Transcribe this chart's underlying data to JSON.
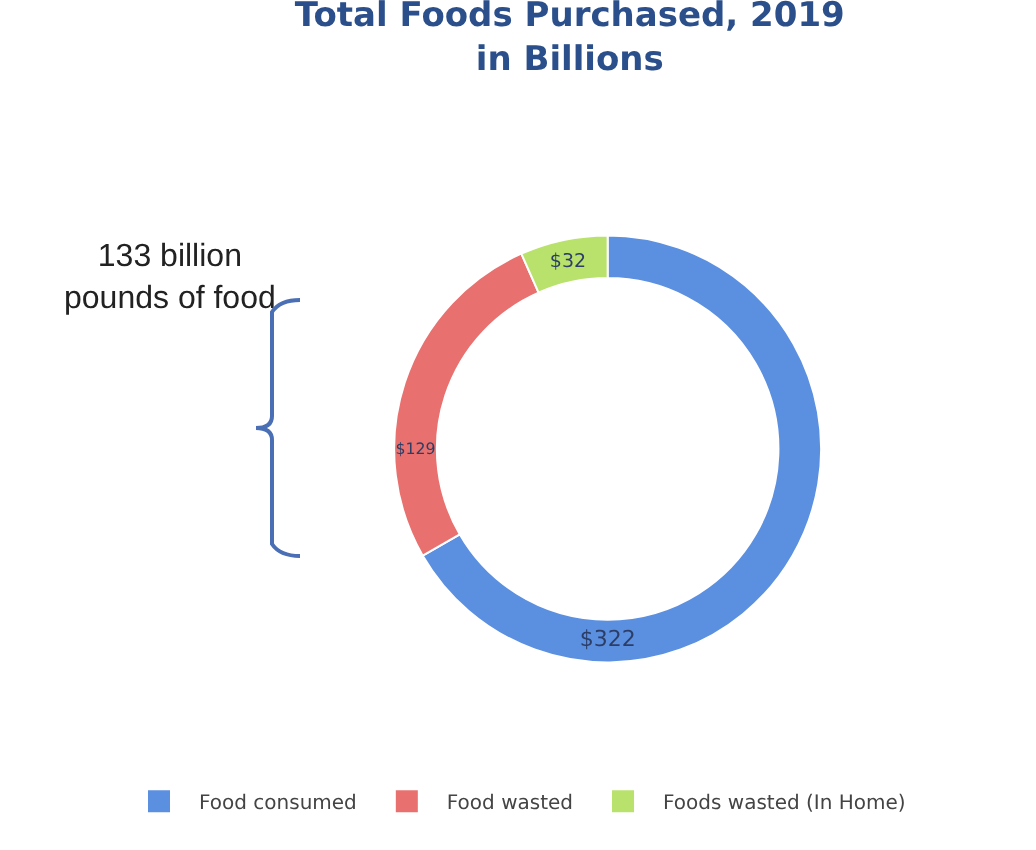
{
  "chart_data": {
    "type": "donut",
    "title": "Total Foods Purchased, 2019\nin Billions",
    "categories": [
      "Food consumed",
      "Food wasted",
      "Foods wasted (In Home)"
    ],
    "values": [
      322,
      129,
      32
    ],
    "colors": [
      "#5b8fe0",
      "#e8706e",
      "#b9e26c"
    ],
    "value_labels": [
      "$322",
      "$129",
      "$32"
    ],
    "legend": "bottom",
    "annotations": [
      "133 billion\npounds of food"
    ]
  }
}
